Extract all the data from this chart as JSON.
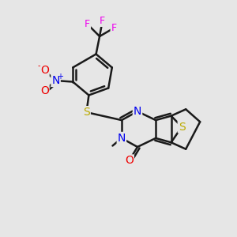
{
  "background_color": "#e6e6e6",
  "bond_color": "#1a1a1a",
  "bond_width": 1.8,
  "atom_colors": {
    "N": "#0000ee",
    "O": "#ee0000",
    "S": "#bbaa00",
    "F": "#ee00ee",
    "C": "#1a1a1a"
  },
  "font_size": 9,
  "figsize": [
    3.0,
    3.0
  ],
  "dpi": 100,
  "xlim": [
    0,
    10
  ],
  "ylim": [
    0,
    10
  ]
}
